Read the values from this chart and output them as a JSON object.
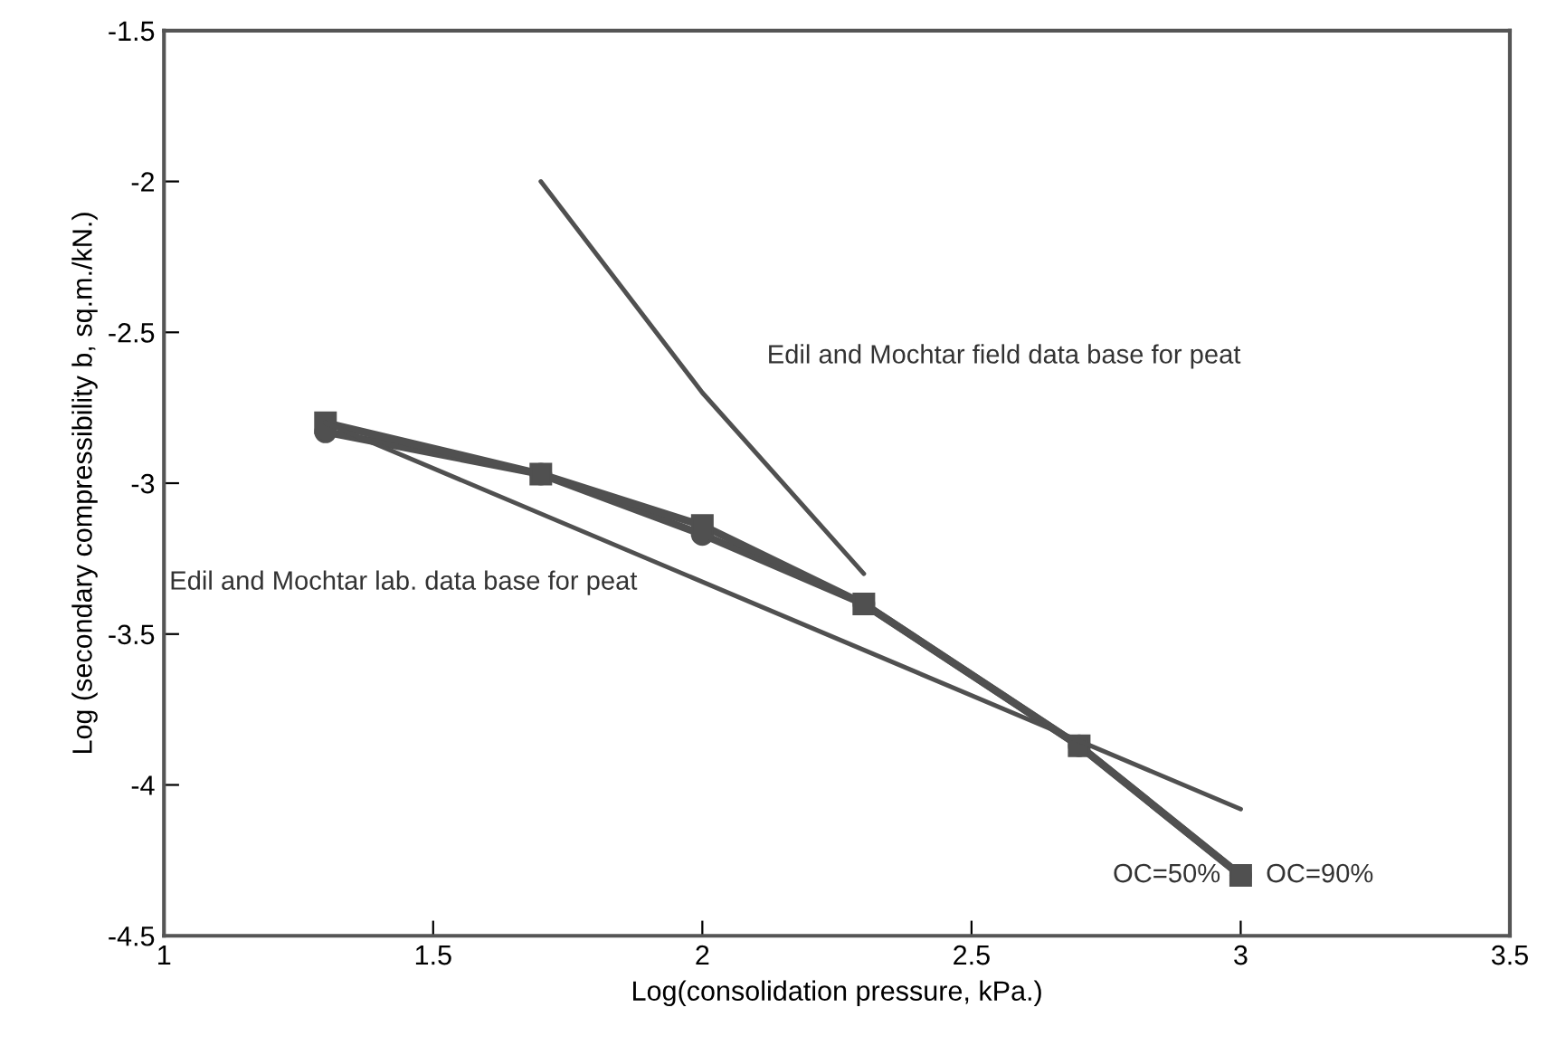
{
  "chart_data": {
    "type": "line",
    "xlabel": "Log(consolidation pressure, kPa.)",
    "ylabel": "Log (secondary compressibility b, sq.m./kN.)",
    "xlim": [
      1,
      3.5
    ],
    "xticks": [
      1,
      1.5,
      2,
      2.5,
      3,
      3.5
    ],
    "ylim": [
      -4.5,
      -1.5
    ],
    "yticks": [
      -4.5,
      -4,
      -3.5,
      -3,
      -2.5,
      -2,
      -1.5
    ],
    "grid": false,
    "series": [
      {
        "name": "OC=50%",
        "color": "#505050",
        "marker": "circle",
        "x": [
          1.3,
          1.7,
          2.0,
          2.3,
          2.7,
          3.0
        ],
        "values": [
          -2.83,
          -2.97,
          -3.17,
          -3.4,
          -3.87,
          -4.3
        ]
      },
      {
        "name": "OC=90%",
        "color": "#505050",
        "marker": "square",
        "x": [
          1.3,
          1.7,
          2.0,
          2.3,
          2.7,
          3.0
        ],
        "values": [
          -2.8,
          -2.97,
          -3.14,
          -3.4,
          -3.87,
          -4.3
        ]
      },
      {
        "name": "Edil and Mochtar lab. data base for peat",
        "color": "#505050",
        "marker": "none",
        "x": [
          1.3,
          3.0
        ],
        "values": [
          -2.8,
          -4.08
        ]
      },
      {
        "name": "Edil and Mochtar field data base for peat",
        "color": "#505050",
        "marker": "none",
        "x": [
          1.7,
          2.0,
          2.3
        ],
        "values": [
          -2.0,
          -2.7,
          -3.3
        ]
      }
    ]
  }
}
